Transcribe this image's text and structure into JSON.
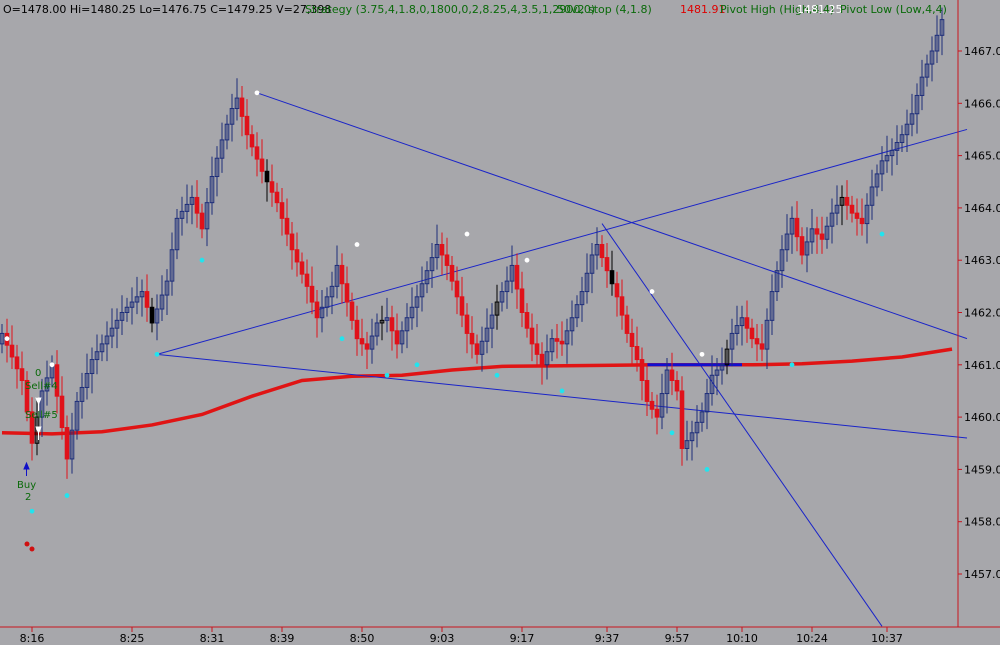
{
  "header": {
    "ohlcv": "O=1478.00  Hi=1480.25  Lo=1476.75  C=1479.25  V=27,398",
    "strategy": "Strategy (3.75,4,1.8,0,1800,0,2,8.25,4,3.5,1,2900,0)",
    "stop_label": "50v2 stop (4,1.8)",
    "stop_value": "1481.91",
    "pivot_high_label": "Pivot High (High,4,4)",
    "last_value": "1481.25",
    "pivot_low_label": "Pivot Low (Low,4,4)"
  },
  "colors": {
    "background": "#a7a7ab",
    "up_bar": "#1d2d7a",
    "down_bar": "#e0121a",
    "black_bar": "#000000",
    "ma_line": "#e01414",
    "trend_line": "#1a24c8",
    "pivot_high": "#ffffff",
    "pivot_low": "#22e4ee",
    "axis_line": "#c8141e",
    "annotation": "#0a6a0a"
  },
  "annotations": [
    {
      "text": "0",
      "role": "signal-count"
    },
    {
      "text": "Sell#4",
      "role": "sell-signal"
    },
    {
      "text": "Sell#5",
      "role": "sell-signal"
    },
    {
      "text": "Buy",
      "role": "buy-signal"
    },
    {
      "text": "2",
      "role": "buy-count"
    }
  ],
  "chart_data": {
    "type": "candlestick",
    "x_labels": [
      "8:16",
      "8:25",
      "8:31",
      "8:39",
      "8:50",
      "9:03",
      "9:17",
      "9:37",
      "9:57",
      "10:10",
      "10:24",
      "10:37"
    ],
    "y_ticks": [
      "1457.00",
      "1458.00",
      "1459.00",
      "1460.00",
      "1461.00",
      "1462.00",
      "1463.00",
      "1464.00",
      "1465.00",
      "1466.00",
      "1467.00"
    ],
    "ylim": [
      1456.0,
      1468.2
    ],
    "close_path": [
      [
        0,
        1461.6
      ],
      [
        4,
        1460.7
      ],
      [
        6,
        1459.5
      ],
      [
        8,
        1460.5
      ],
      [
        10,
        1461.0
      ],
      [
        13,
        1459.2
      ],
      [
        15,
        1460.3
      ],
      [
        18,
        1461.1
      ],
      [
        24,
        1462.0
      ],
      [
        28,
        1462.4
      ],
      [
        30,
        1461.8
      ],
      [
        33,
        1462.6
      ],
      [
        35,
        1463.8
      ],
      [
        38,
        1464.2
      ],
      [
        40,
        1463.6
      ],
      [
        42,
        1464.6
      ],
      [
        44,
        1465.3
      ],
      [
        46,
        1465.9
      ],
      [
        47,
        1466.1
      ],
      [
        49,
        1465.4
      ],
      [
        52,
        1464.7
      ],
      [
        55,
        1464.1
      ],
      [
        58,
        1463.2
      ],
      [
        61,
        1462.5
      ],
      [
        63,
        1461.9
      ],
      [
        66,
        1462.5
      ],
      [
        67,
        1462.9
      ],
      [
        69,
        1462.2
      ],
      [
        71,
        1461.5
      ],
      [
        73,
        1461.3
      ],
      [
        75,
        1461.8
      ],
      [
        77,
        1461.9
      ],
      [
        79,
        1461.4
      ],
      [
        81,
        1461.9
      ],
      [
        83,
        1462.3
      ],
      [
        85,
        1462.8
      ],
      [
        87,
        1463.3
      ],
      [
        89,
        1462.9
      ],
      [
        91,
        1462.3
      ],
      [
        93,
        1461.6
      ],
      [
        95,
        1461.2
      ],
      [
        97,
        1461.7
      ],
      [
        99,
        1462.2
      ],
      [
        101,
        1462.6
      ],
      [
        102,
        1462.9
      ],
      [
        104,
        1462.0
      ],
      [
        106,
        1461.4
      ],
      [
        108,
        1461.0
      ],
      [
        110,
        1461.5
      ],
      [
        112,
        1461.4
      ],
      [
        114,
        1461.9
      ],
      [
        116,
        1462.4
      ],
      [
        118,
        1463.1
      ],
      [
        119,
        1463.3
      ],
      [
        121,
        1462.8
      ],
      [
        123,
        1462.3
      ],
      [
        125,
        1461.6
      ],
      [
        127,
        1461.1
      ],
      [
        129,
        1460.3
      ],
      [
        131,
        1460.0
      ],
      [
        133,
        1460.9
      ],
      [
        135,
        1460.5
      ],
      [
        136,
        1459.4
      ],
      [
        138,
        1459.7
      ],
      [
        140,
        1460.1
      ],
      [
        142,
        1460.8
      ],
      [
        144,
        1461.0
      ],
      [
        146,
        1461.6
      ],
      [
        148,
        1461.9
      ],
      [
        150,
        1461.5
      ],
      [
        152,
        1461.3
      ],
      [
        154,
        1462.4
      ],
      [
        156,
        1463.2
      ],
      [
        158,
        1463.8
      ],
      [
        160,
        1463.1
      ],
      [
        162,
        1463.6
      ],
      [
        164,
        1463.4
      ],
      [
        166,
        1463.9
      ],
      [
        168,
        1464.2
      ],
      [
        170,
        1463.9
      ],
      [
        172,
        1463.7
      ],
      [
        174,
        1464.4
      ],
      [
        176,
        1464.9
      ],
      [
        178,
        1465.1
      ],
      [
        180,
        1465.4
      ],
      [
        182,
        1465.8
      ],
      [
        184,
        1466.5
      ],
      [
        186,
        1467.0
      ],
      [
        188,
        1467.6
      ]
    ],
    "moving_average": [
      [
        0,
        1459.7
      ],
      [
        10,
        1459.68
      ],
      [
        20,
        1459.72
      ],
      [
        30,
        1459.85
      ],
      [
        40,
        1460.05
      ],
      [
        50,
        1460.4
      ],
      [
        60,
        1460.7
      ],
      [
        70,
        1460.78
      ],
      [
        80,
        1460.8
      ],
      [
        90,
        1460.9
      ],
      [
        100,
        1460.97
      ],
      [
        110,
        1460.98
      ],
      [
        120,
        1460.99
      ],
      [
        130,
        1461.0
      ],
      [
        140,
        1461.0
      ],
      [
        150,
        1461.0
      ],
      [
        160,
        1461.02
      ],
      [
        170,
        1461.07
      ],
      [
        180,
        1461.15
      ],
      [
        190,
        1461.3
      ]
    ],
    "pivot_highs": [
      [
        1,
        1461.5
      ],
      [
        10,
        1461.0
      ],
      [
        51,
        1466.2
      ],
      [
        71,
        1463.3
      ],
      [
        93,
        1463.5
      ],
      [
        105,
        1463.0
      ],
      [
        130,
        1462.4
      ],
      [
        140,
        1461.2
      ]
    ],
    "pivot_lows": [
      [
        6,
        1458.2
      ],
      [
        13,
        1458.5
      ],
      [
        31,
        1461.2
      ],
      [
        40,
        1463.0
      ],
      [
        68,
        1461.5
      ],
      [
        77,
        1460.8
      ],
      [
        83,
        1461.0
      ],
      [
        99,
        1460.8
      ],
      [
        112,
        1460.5
      ],
      [
        134,
        1459.7
      ],
      [
        141,
        1459.0
      ],
      [
        158,
        1461.0
      ],
      [
        176,
        1463.5
      ]
    ],
    "trend_lines": [
      {
        "from": [
          51,
          1466.2
        ],
        "to": [
          193,
          1461.5
        ]
      },
      {
        "from": [
          31,
          1461.2
        ],
        "to": [
          193,
          1465.5
        ]
      },
      {
        "from": [
          31,
          1461.2
        ],
        "to": [
          193,
          1459.6
        ]
      },
      {
        "from": [
          120,
          1463.7
        ],
        "to": [
          176,
          1456.0
        ]
      }
    ],
    "stop_segment": [
      [
        129,
        1461.0
      ],
      [
        148,
        1461.0
      ]
    ],
    "bar_count": 189
  }
}
